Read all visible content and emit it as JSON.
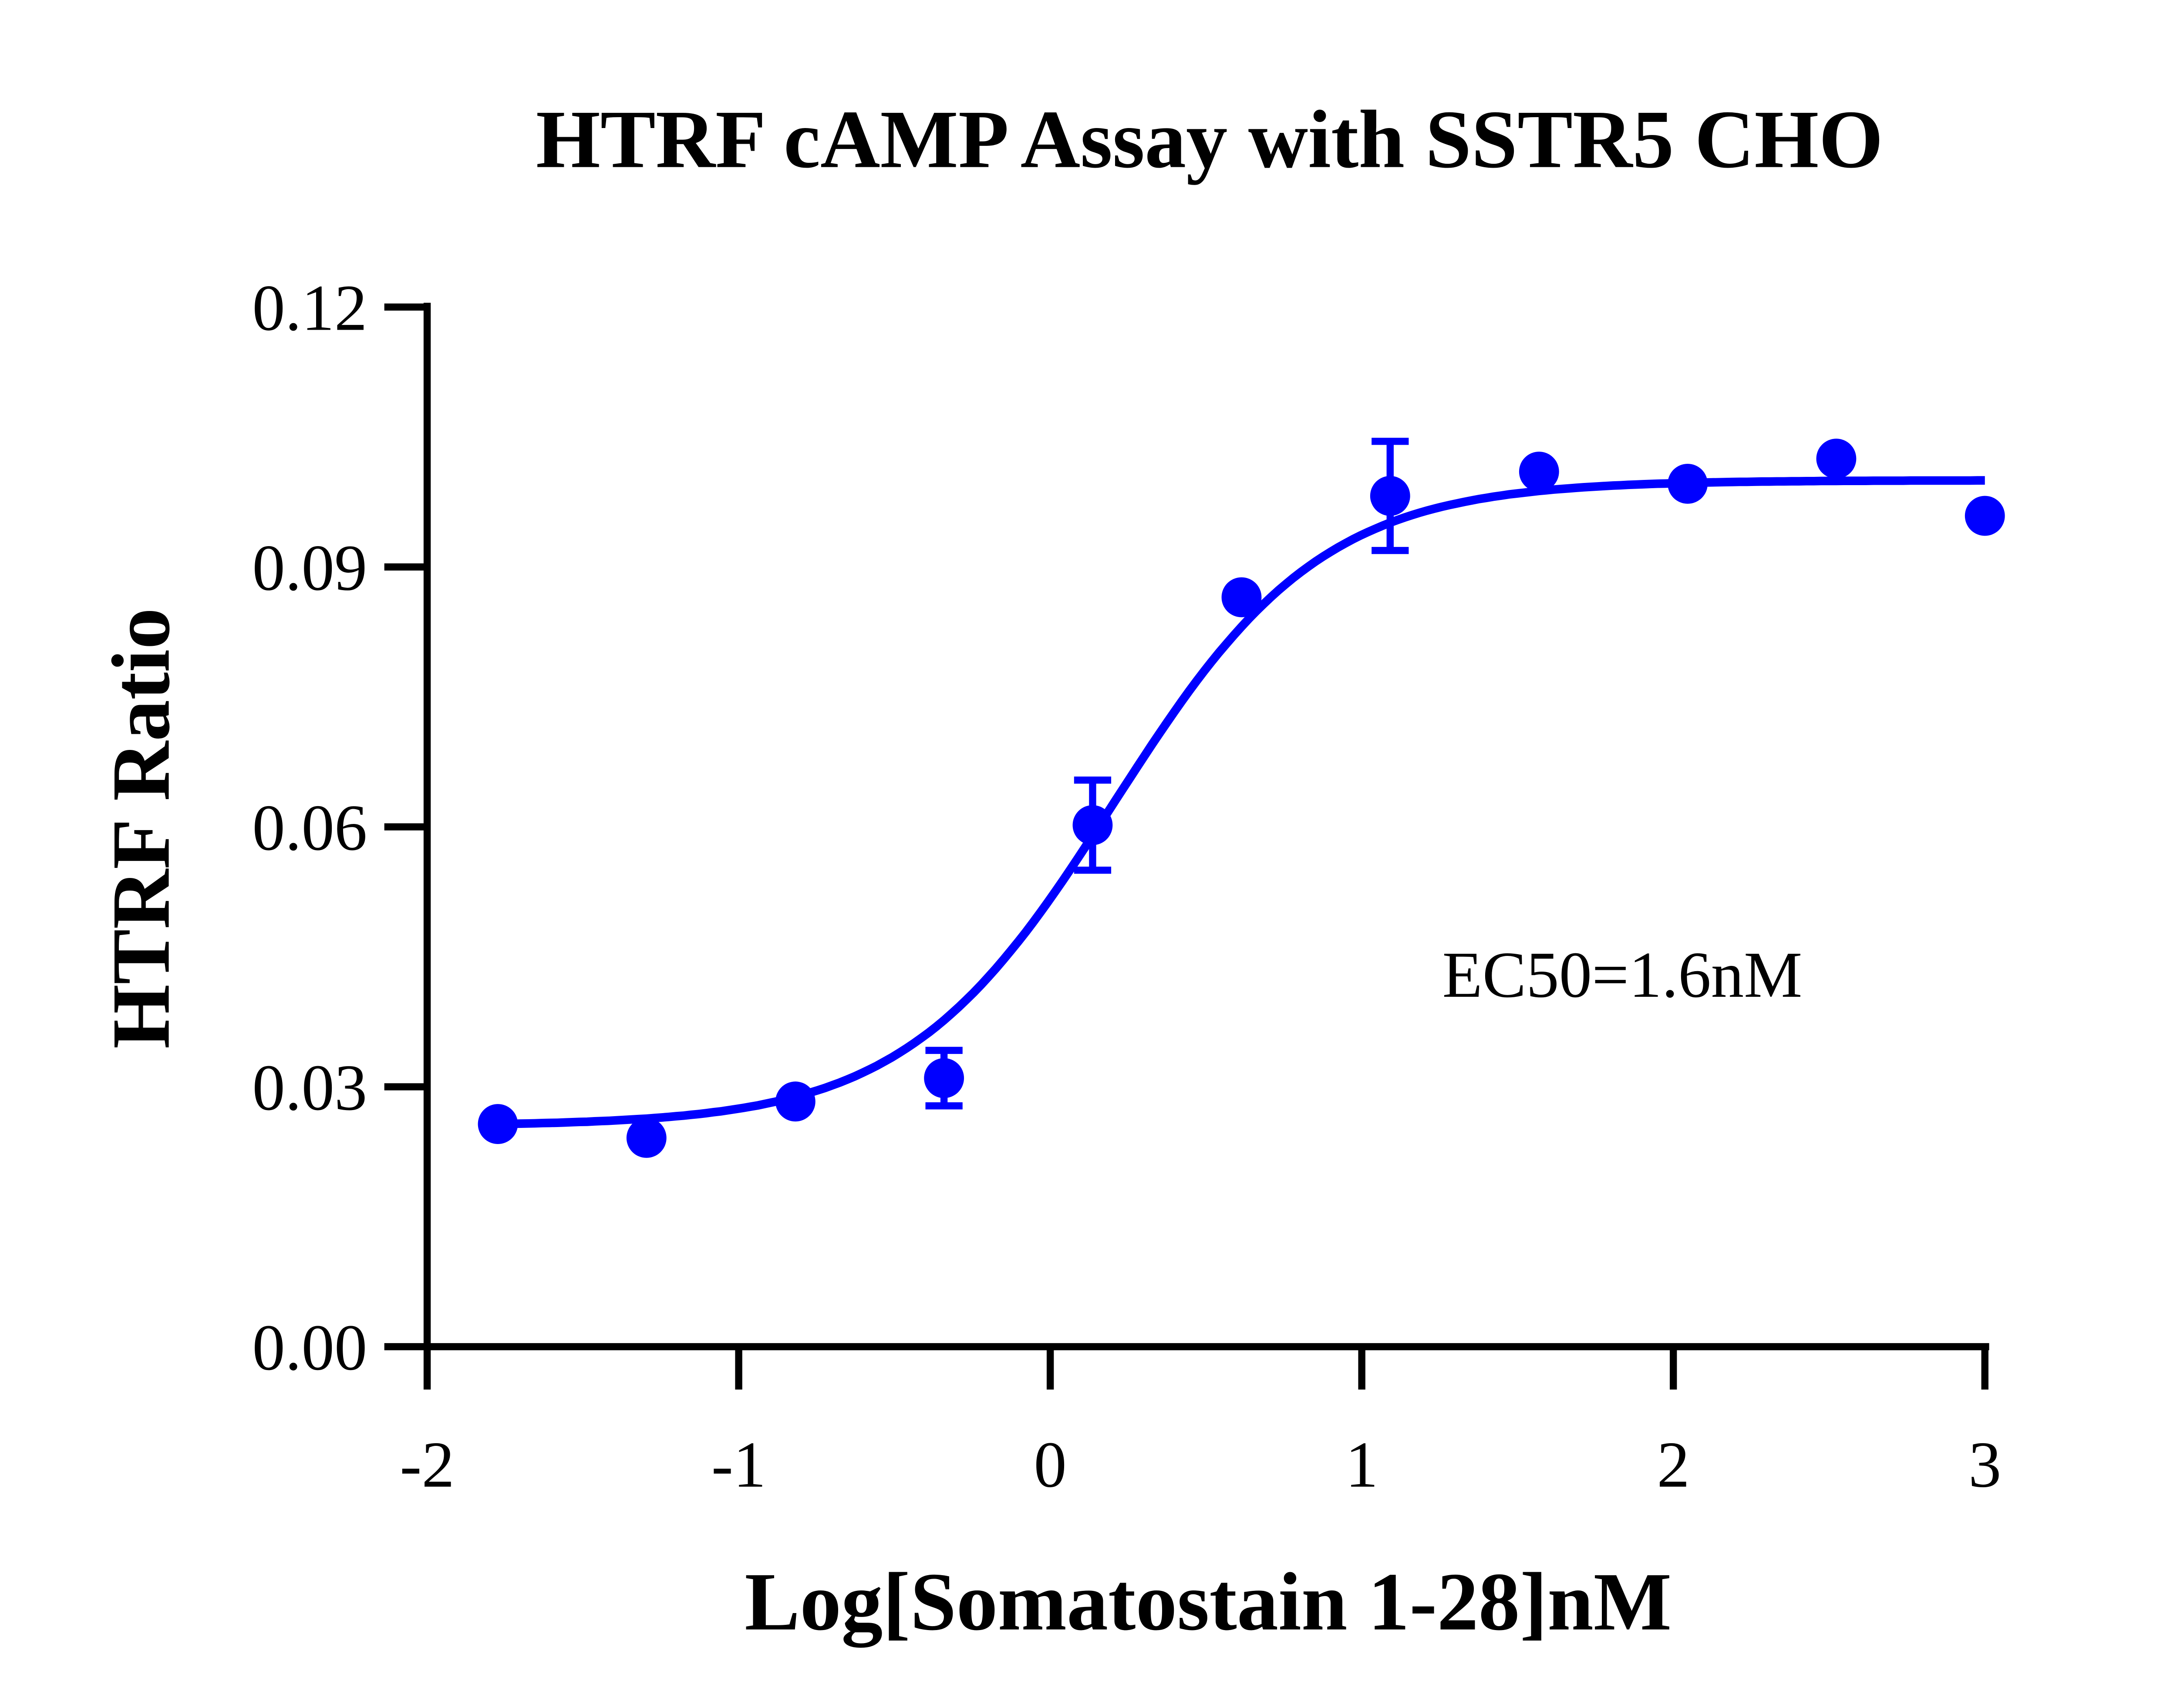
{
  "chart_data": {
    "type": "scatter",
    "title": "HTRF cAMP Assay with SSTR5 CHO",
    "xlabel": "Log[Somatostain 1-28]nM",
    "ylabel": "HTRF Ratio",
    "xlim": [
      -2,
      3
    ],
    "ylim": [
      0,
      0.12
    ],
    "xticks": [
      "-2",
      "-1",
      "0",
      "1",
      "2",
      "3"
    ],
    "yticks": [
      "0.00",
      "0.03",
      "0.06",
      "0.09",
      "0.12"
    ],
    "grid": false,
    "color": "#0000ff",
    "annotation": "EC50=1.6nM",
    "points": [
      {
        "x": -1.773,
        "y": 0.0257,
        "err": 0
      },
      {
        "x": -1.296,
        "y": 0.0241,
        "err": 0
      },
      {
        "x": -0.818,
        "y": 0.0283,
        "err": 0
      },
      {
        "x": -0.341,
        "y": 0.031,
        "err": 0.0032
      },
      {
        "x": 0.136,
        "y": 0.0602,
        "err": 0.0052
      },
      {
        "x": 0.614,
        "y": 0.0865,
        "err": 0
      },
      {
        "x": 1.091,
        "y": 0.0982,
        "err": 0.0063
      },
      {
        "x": 1.569,
        "y": 0.101,
        "err": 0
      },
      {
        "x": 2.046,
        "y": 0.0996,
        "err": 0
      },
      {
        "x": 2.523,
        "y": 0.1025,
        "err": 0
      },
      {
        "x": 3.0,
        "y": 0.0959,
        "err": 0
      }
    ],
    "fit": {
      "model": "4PL",
      "bottom": 0.0255,
      "top": 0.1,
      "logEC50": 0.204,
      "hill": 1.3
    }
  }
}
